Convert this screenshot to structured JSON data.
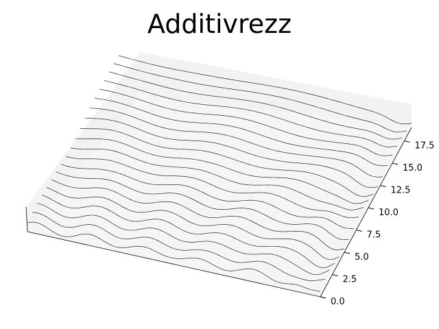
{
  "chart_data": {
    "type": "line",
    "projection": "3d",
    "title": "Additivrezz",
    "xlabel": "",
    "ylabel": "",
    "zlabel": "",
    "grid": false,
    "ylim": [
      0,
      19
    ],
    "y_ticks": [
      0.0,
      2.5,
      5.0,
      7.5,
      10.0,
      12.5,
      15.0,
      17.5
    ],
    "y_tick_labels": [
      "0.0",
      "2.5",
      "5.0",
      "7.5",
      "10.0",
      "12.5",
      "15.0",
      "17.5"
    ],
    "line_color": "#000000",
    "series_count": 20,
    "series_y": [
      0,
      1,
      2,
      3,
      4,
      5,
      6,
      7,
      8,
      9,
      10,
      11,
      12,
      13,
      14,
      15,
      16,
      17,
      18,
      19
    ]
  }
}
